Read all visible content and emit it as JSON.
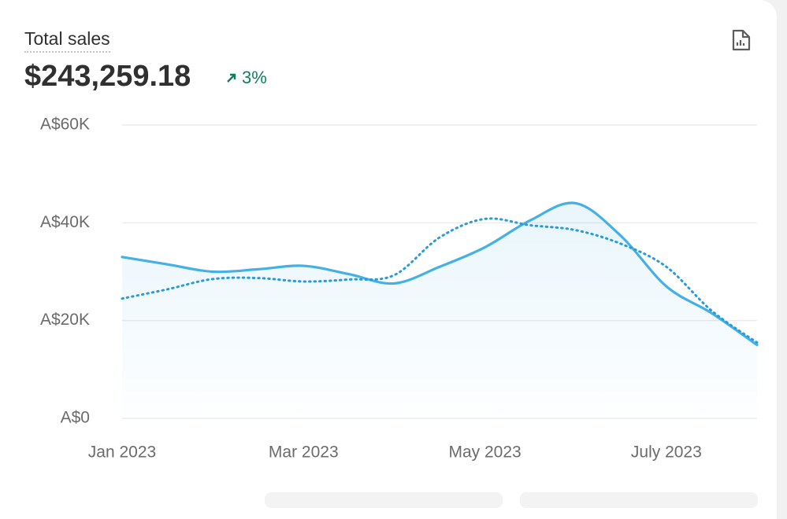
{
  "header": {
    "title": "Total sales",
    "value": "$243,259.18",
    "change": "3%"
  },
  "chart_data": {
    "type": "line",
    "x": [
      0,
      0.5,
      1,
      1.5,
      2,
      2.5,
      3,
      3.5,
      4,
      4.5,
      5,
      5.5,
      6,
      6.5,
      7
    ],
    "series": [
      {
        "color": "#45b0e6",
        "style": "solid",
        "values": [
          33000,
          31500,
          30000,
          30500,
          31200,
          29500,
          27600,
          31000,
          35000,
          40500,
          44000,
          37300,
          27000,
          21500,
          15000
        ]
      },
      {
        "color": "#2a9bd8",
        "style": "dotted",
        "values": [
          24500,
          26400,
          28500,
          28700,
          28000,
          28400,
          29300,
          37000,
          40800,
          39500,
          38500,
          35700,
          31000,
          22000,
          15500
        ]
      }
    ],
    "xlim": [
      0,
      7
    ],
    "xticks": [
      {
        "value": 0,
        "label": "Jan 2023"
      },
      {
        "value": 2,
        "label": "Mar 2023"
      },
      {
        "value": 4,
        "label": "May 2023"
      },
      {
        "value": 6,
        "label": "July 2023"
      }
    ],
    "ylim": [
      0,
      60000
    ],
    "yticks": [
      {
        "value": 0,
        "label": "A$0"
      },
      {
        "value": 20000,
        "label": "A$20K"
      },
      {
        "value": 40000,
        "label": "A$40K"
      },
      {
        "value": 60000,
        "label": "A$60K"
      }
    ],
    "grid": true
  }
}
